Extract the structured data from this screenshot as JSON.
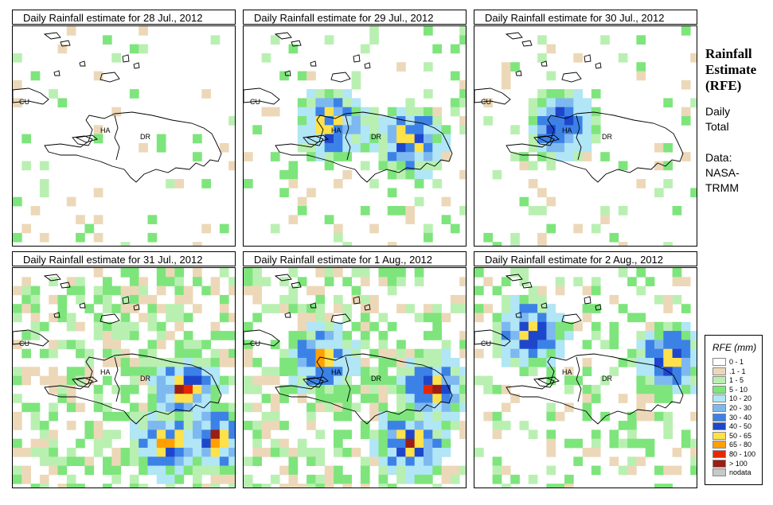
{
  "panels": [
    {
      "title": "Daily Rainfall estimate for  28 Jul., 2012",
      "seed": 28,
      "hot": [],
      "intensity": 0.15
    },
    {
      "title": "Daily Rainfall estimate for  29 Jul., 2012",
      "seed": 29,
      "hot": [
        [
          0.4,
          0.45
        ],
        [
          0.75,
          0.52
        ]
      ],
      "intensity": 0.3
    },
    {
      "title": "Daily Rainfall estimate for  30 Jul., 2012",
      "seed": 30,
      "hot": [
        [
          0.4,
          0.45
        ]
      ],
      "intensity": 0.2
    },
    {
      "title": "Daily Rainfall estimate for  31 Jul., 2012",
      "seed": 31,
      "hot": [
        [
          0.78,
          0.55
        ],
        [
          0.92,
          0.78
        ],
        [
          0.7,
          0.8
        ]
      ],
      "intensity": 0.8
    },
    {
      "title": "Daily Rainfall estimate for  1 Aug., 2012",
      "seed": 1,
      "hot": [
        [
          0.75,
          0.8
        ],
        [
          0.85,
          0.55
        ],
        [
          0.35,
          0.42
        ]
      ],
      "intensity": 0.9
    },
    {
      "title": "Daily Rainfall estimate for  2 Aug., 2012",
      "seed": 2,
      "hot": [
        [
          0.88,
          0.42
        ],
        [
          0.25,
          0.3
        ]
      ],
      "intensity": 0.5
    }
  ],
  "map_labels": {
    "cu": "CU",
    "ha": "HA",
    "dr": "DR"
  },
  "side": {
    "heading_line1": "Rainfall",
    "heading_line2": "Estimate",
    "heading_line3": "(RFE)",
    "daily_line1": "Daily",
    "daily_line2": "Total",
    "data_line1": "Data:",
    "data_line2": "NASA-",
    "data_line3": "TRMM"
  },
  "legend": {
    "title": "RFE (mm)",
    "items": [
      {
        "label": "0 - 1",
        "color": "#ffffff"
      },
      {
        "label": ".1 - 1",
        "color": "#ecd8b8"
      },
      {
        "label": "1 - 5",
        "color": "#b9f0b2"
      },
      {
        "label": "5 - 10",
        "color": "#7ee57c"
      },
      {
        "label": "10 - 20",
        "color": "#b0e6f5"
      },
      {
        "label": "20 - 30",
        "color": "#7db9f0"
      },
      {
        "label": "30 - 40",
        "color": "#3c82e6"
      },
      {
        "label": "40 - 50",
        "color": "#1e46cd"
      },
      {
        "label": "50 - 65",
        "color": "#ffe14b"
      },
      {
        "label": "65 - 80",
        "color": "#ffa000"
      },
      {
        "label": "80 - 100",
        "color": "#e62800"
      },
      {
        "label": "> 100",
        "color": "#9b1e14"
      },
      {
        "label": "nodata",
        "color": "#c8c8c8"
      }
    ]
  }
}
